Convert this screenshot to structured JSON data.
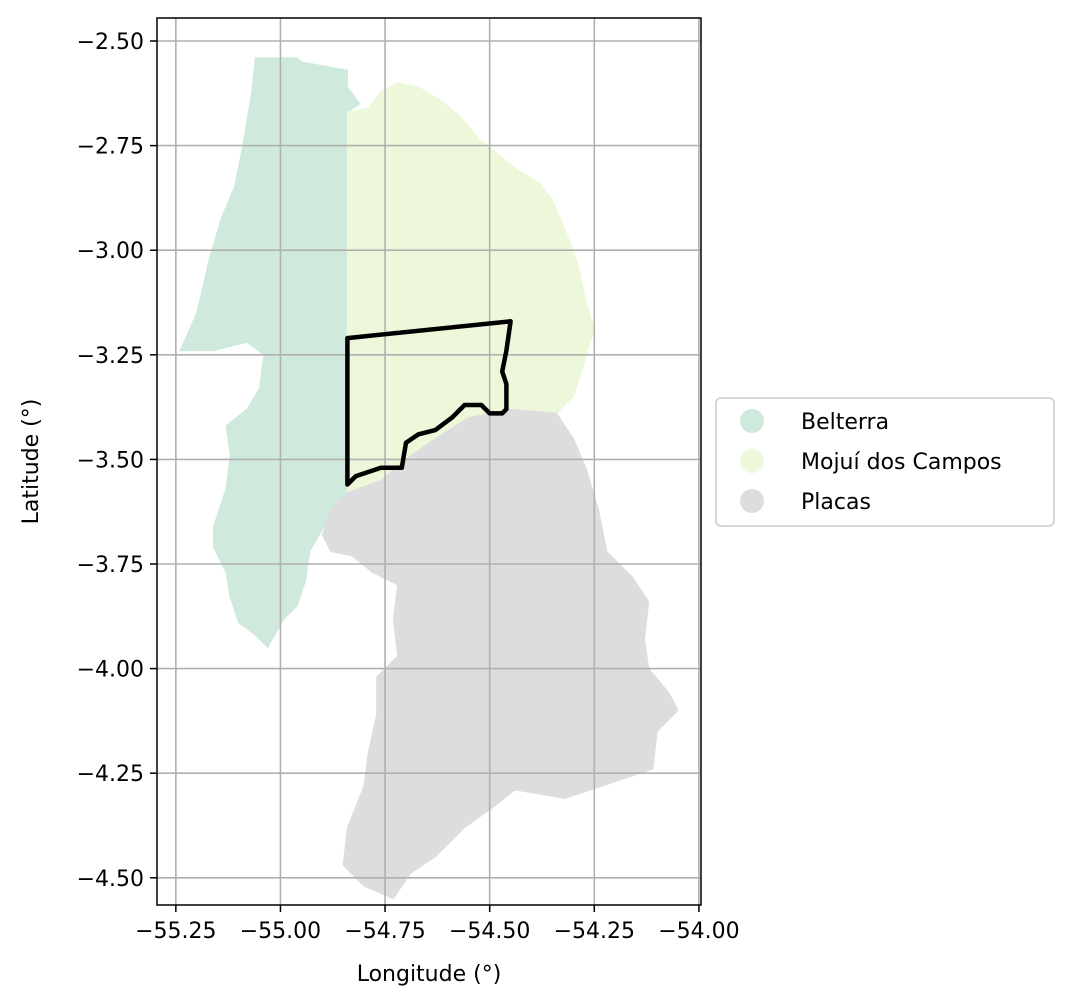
{
  "chart_data": {
    "type": "map",
    "xlabel": "Longitude (°)",
    "ylabel": "Latitude (°)",
    "xlim": [
      -55.295,
      -53.995
    ],
    "ylim": [
      -4.565,
      -2.445
    ],
    "grid": true,
    "x_ticks": [
      {
        "value": -55.25,
        "label": "−55.25"
      },
      {
        "value": -55.0,
        "label": "−55.00"
      },
      {
        "value": -54.75,
        "label": "−54.75"
      },
      {
        "value": -54.5,
        "label": "−54.50"
      },
      {
        "value": -54.25,
        "label": "−54.25"
      },
      {
        "value": -54.0,
        "label": "−54.00"
      }
    ],
    "y_ticks": [
      {
        "value": -2.5,
        "label": "−2.50"
      },
      {
        "value": -2.75,
        "label": "−2.75"
      },
      {
        "value": -3.0,
        "label": "−3.00"
      },
      {
        "value": -3.25,
        "label": "−3.25"
      },
      {
        "value": -3.5,
        "label": "−3.50"
      },
      {
        "value": -3.75,
        "label": "−3.75"
      },
      {
        "value": -4.0,
        "label": "−4.00"
      },
      {
        "value": -4.25,
        "label": "−4.25"
      },
      {
        "value": -4.5,
        "label": "−4.50"
      }
    ],
    "legend_position": "center-right, outside plot",
    "regions": [
      {
        "name": "Belterra",
        "color": "#cfeadd",
        "outline": [
          [
            -55.06,
            -2.54
          ],
          [
            -54.96,
            -2.54
          ],
          [
            -54.95,
            -2.55
          ],
          [
            -54.84,
            -2.57
          ],
          [
            -54.84,
            -2.61
          ],
          [
            -54.81,
            -2.65
          ],
          [
            -54.84,
            -2.67
          ],
          [
            -54.84,
            -3.0
          ],
          [
            -54.84,
            -3.3
          ],
          [
            -54.84,
            -3.45
          ],
          [
            -54.84,
            -3.58
          ],
          [
            -54.89,
            -3.65
          ],
          [
            -54.93,
            -3.72
          ],
          [
            -54.94,
            -3.79
          ],
          [
            -54.96,
            -3.85
          ],
          [
            -54.99,
            -3.88
          ],
          [
            -55.02,
            -3.93
          ],
          [
            -55.03,
            -3.95
          ],
          [
            -55.06,
            -3.92
          ],
          [
            -55.1,
            -3.89
          ],
          [
            -55.12,
            -3.83
          ],
          [
            -55.13,
            -3.77
          ],
          [
            -55.16,
            -3.71
          ],
          [
            -55.16,
            -3.66
          ],
          [
            -55.13,
            -3.57
          ],
          [
            -55.12,
            -3.49
          ],
          [
            -55.13,
            -3.42
          ],
          [
            -55.08,
            -3.38
          ],
          [
            -55.05,
            -3.33
          ],
          [
            -55.04,
            -3.25
          ],
          [
            -55.08,
            -3.22
          ],
          [
            -55.16,
            -3.24
          ],
          [
            -55.24,
            -3.24
          ],
          [
            -55.2,
            -3.15
          ],
          [
            -55.17,
            -3.02
          ],
          [
            -55.14,
            -2.92
          ],
          [
            -55.11,
            -2.85
          ],
          [
            -55.09,
            -2.75
          ],
          [
            -55.07,
            -2.63
          ]
        ]
      },
      {
        "name": "Mojuí dos Campos",
        "color": "#edf8da",
        "outline": [
          [
            -54.84,
            -2.67
          ],
          [
            -54.79,
            -2.66
          ],
          [
            -54.76,
            -2.62
          ],
          [
            -54.72,
            -2.6
          ],
          [
            -54.67,
            -2.61
          ],
          [
            -54.62,
            -2.64
          ],
          [
            -54.57,
            -2.68
          ],
          [
            -54.52,
            -2.74
          ],
          [
            -54.48,
            -2.77
          ],
          [
            -54.43,
            -2.81
          ],
          [
            -54.38,
            -2.84
          ],
          [
            -54.35,
            -2.88
          ],
          [
            -54.32,
            -2.95
          ],
          [
            -54.29,
            -3.03
          ],
          [
            -54.27,
            -3.12
          ],
          [
            -54.25,
            -3.19
          ],
          [
            -54.26,
            -3.22
          ],
          [
            -54.28,
            -3.29
          ],
          [
            -54.3,
            -3.35
          ],
          [
            -54.34,
            -3.39
          ],
          [
            -54.45,
            -3.38
          ],
          [
            -54.55,
            -3.4
          ],
          [
            -54.63,
            -3.45
          ],
          [
            -54.7,
            -3.5
          ],
          [
            -54.76,
            -3.55
          ],
          [
            -54.84,
            -3.58
          ],
          [
            -54.84,
            -3.3
          ],
          [
            -54.84,
            -3.0
          ]
        ]
      },
      {
        "name": "Placas",
        "color": "#dddddd",
        "outline": [
          [
            -54.84,
            -3.58
          ],
          [
            -54.76,
            -3.55
          ],
          [
            -54.7,
            -3.5
          ],
          [
            -54.63,
            -3.45
          ],
          [
            -54.55,
            -3.4
          ],
          [
            -54.45,
            -3.38
          ],
          [
            -54.34,
            -3.39
          ],
          [
            -54.3,
            -3.45
          ],
          [
            -54.27,
            -3.52
          ],
          [
            -54.24,
            -3.62
          ],
          [
            -54.22,
            -3.72
          ],
          [
            -54.16,
            -3.78
          ],
          [
            -54.12,
            -3.84
          ],
          [
            -54.13,
            -3.93
          ],
          [
            -54.12,
            -4.0
          ],
          [
            -54.07,
            -4.06
          ],
          [
            -54.05,
            -4.1
          ],
          [
            -54.1,
            -4.15
          ],
          [
            -54.11,
            -4.24
          ],
          [
            -54.23,
            -4.28
          ],
          [
            -54.32,
            -4.31
          ],
          [
            -54.44,
            -4.29
          ],
          [
            -54.49,
            -4.33
          ],
          [
            -54.56,
            -4.38
          ],
          [
            -54.63,
            -4.45
          ],
          [
            -54.69,
            -4.49
          ],
          [
            -54.73,
            -4.55
          ],
          [
            -54.8,
            -4.52
          ],
          [
            -54.85,
            -4.47
          ],
          [
            -54.84,
            -4.38
          ],
          [
            -54.8,
            -4.28
          ],
          [
            -54.79,
            -4.2
          ],
          [
            -54.77,
            -4.11
          ],
          [
            -54.77,
            -4.02
          ],
          [
            -54.72,
            -3.97
          ],
          [
            -54.73,
            -3.88
          ],
          [
            -54.72,
            -3.8
          ],
          [
            -54.78,
            -3.77
          ],
          [
            -54.83,
            -3.73
          ],
          [
            -54.88,
            -3.72
          ],
          [
            -54.9,
            -3.68
          ],
          [
            -54.88,
            -3.62
          ]
        ]
      }
    ],
    "highlight_boundary": {
      "color": "#000000",
      "outline": [
        [
          -54.84,
          -3.21
        ],
        [
          -54.45,
          -3.17
        ],
        [
          -54.46,
          -3.24
        ],
        [
          -54.47,
          -3.29
        ],
        [
          -54.46,
          -3.32
        ],
        [
          -54.46,
          -3.38
        ],
        [
          -54.47,
          -3.39
        ],
        [
          -54.5,
          -3.39
        ],
        [
          -54.52,
          -3.37
        ],
        [
          -54.56,
          -3.37
        ],
        [
          -54.59,
          -3.4
        ],
        [
          -54.63,
          -3.43
        ],
        [
          -54.67,
          -3.44
        ],
        [
          -54.7,
          -3.46
        ],
        [
          -54.71,
          -3.52
        ],
        [
          -54.76,
          -3.52
        ],
        [
          -54.79,
          -3.53
        ],
        [
          -54.82,
          -3.54
        ],
        [
          -54.84,
          -3.56
        ]
      ]
    }
  }
}
